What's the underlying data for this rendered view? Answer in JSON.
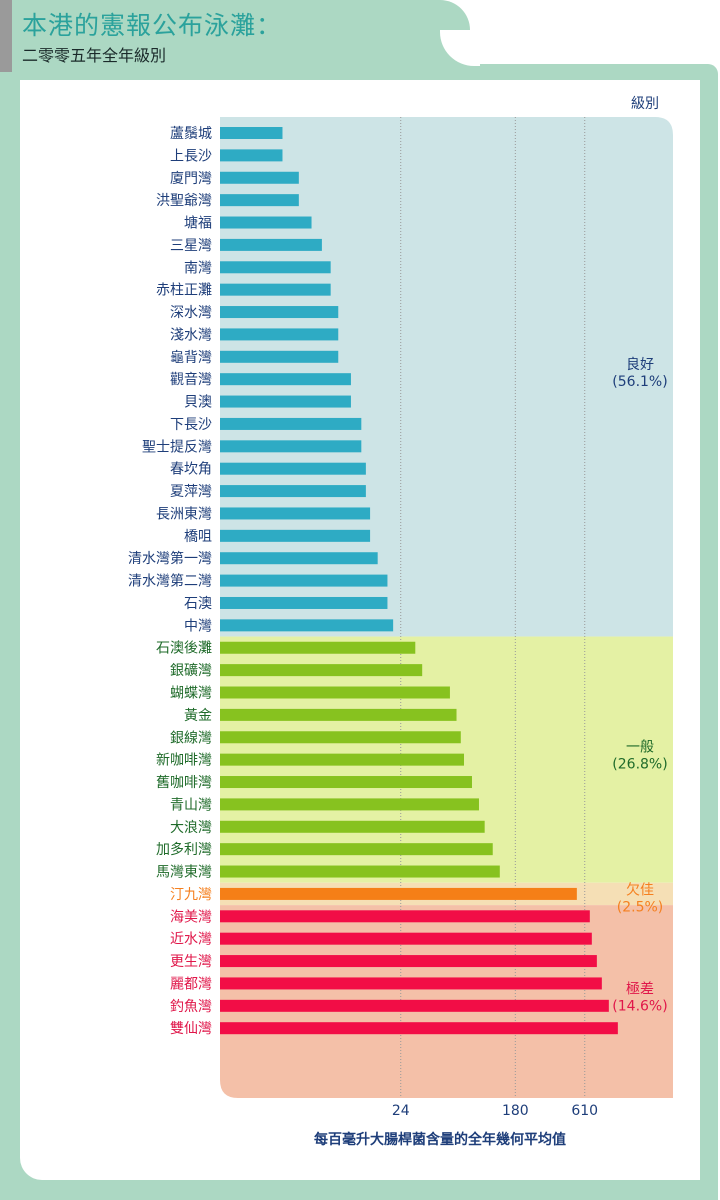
{
  "header": {
    "title": "本港的憲報公布泳灘：",
    "subtitle": "二零零五年全年級別"
  },
  "chart_data": {
    "type": "bar",
    "orientation": "horizontal",
    "scale": "log",
    "xlim": [
      1,
      2880
    ],
    "xticks": [
      24,
      180,
      610
    ],
    "xlabel": "每百毫升大腸桿菌含量的全年幾何平均值",
    "legend_title": "級別",
    "grades": [
      {
        "name": "良好",
        "pct": "(56.1%)",
        "color": "#2eabc4",
        "bg": "#cde4e6",
        "text": "#1e3e7a"
      },
      {
        "name": "一般",
        "pct": "(26.8%)",
        "color": "#87c21f",
        "bg": "#e4f1a4",
        "text": "#1f6b2a"
      },
      {
        "name": "欠佳",
        "pct": "(2.5%)",
        "color": "#f57f17",
        "bg": "#f5dfb5",
        "text": "#f58020"
      },
      {
        "name": "極差",
        "pct": "(14.6%)",
        "color": "#f20d46",
        "bg": "#f4c0a8",
        "text": "#e0174a"
      }
    ],
    "categories": [
      "蘆鬚城",
      "上長沙",
      "廈門灣",
      "洪聖爺灣",
      "塘福",
      "三星灣",
      "南灣",
      "赤柱正灘",
      "深水灣",
      "淺水灣",
      "龜背灣",
      "觀音灣",
      "貝澳",
      "下長沙",
      "聖士提反灣",
      "春坎角",
      "夏萍灣",
      "長洲東灣",
      "橋咀",
      "清水灣第一灣",
      "清水灣第二灣",
      "石澳",
      "中灣",
      "石澳後灘",
      "銀礦灣",
      "蝴蝶灣",
      "黃金",
      "銀線灣",
      "新咖啡灣",
      "舊咖啡灣",
      "青山灣",
      "大浪灣",
      "加多利灣",
      "馬灣東灣",
      "汀九灣",
      "海美灣",
      "近水灣",
      "更生灣",
      "麗都灣",
      "釣魚灣",
      "雙仙灣"
    ],
    "values": [
      3,
      3,
      4,
      4,
      5,
      6,
      7,
      7,
      8,
      8,
      8,
      10,
      10,
      12,
      12,
      13,
      13,
      14,
      14,
      16,
      19,
      19,
      21,
      31,
      35,
      57,
      64,
      69,
      73,
      84,
      95,
      105,
      121,
      137,
      531,
      667,
      691,
      755,
      824,
      932,
      1092
    ],
    "grade_index": [
      0,
      0,
      0,
      0,
      0,
      0,
      0,
      0,
      0,
      0,
      0,
      0,
      0,
      0,
      0,
      0,
      0,
      0,
      0,
      0,
      0,
      0,
      0,
      1,
      1,
      1,
      1,
      1,
      1,
      1,
      1,
      1,
      1,
      1,
      2,
      3,
      3,
      3,
      3,
      3,
      3
    ]
  }
}
